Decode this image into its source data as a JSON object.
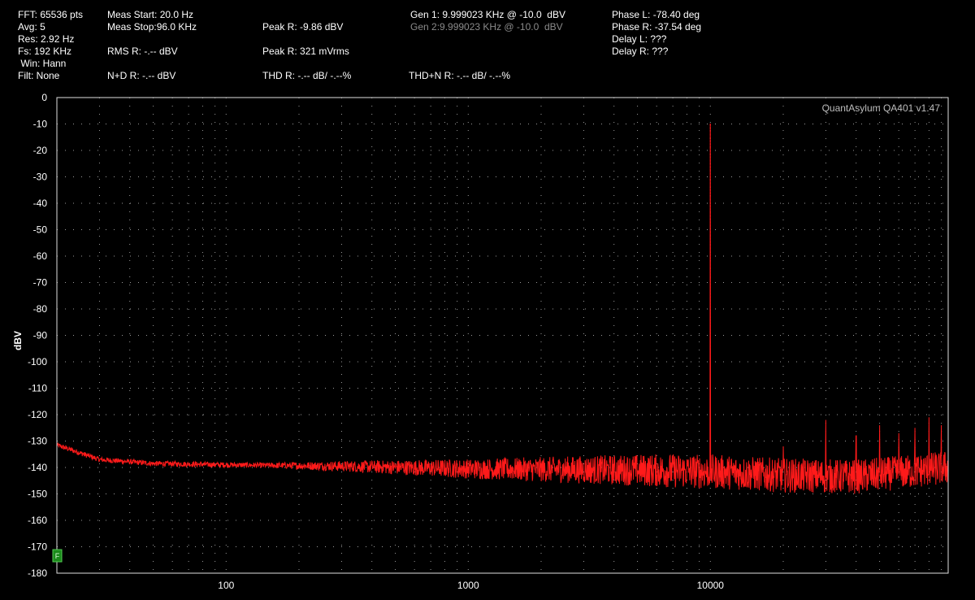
{
  "header": {
    "col1": [
      "FFT: 65536 pts",
      "Avg: 5",
      "Res: 2.92 Hz",
      "Fs: 192 KHz",
      " Win: Hann",
      "Filt: None"
    ],
    "meas_start": "Meas Start: 20.0 Hz",
    "meas_stop": "Meas Stop:96.0 KHz",
    "rms_r": "RMS R: -.-- dBV",
    "nd_r": "N+D R: -.-- dBV",
    "peak_r_db": "Peak R: -9.86 dBV",
    "peak_r_rms": "Peak R: 321 mVrms",
    "thd_r": "THD R: -.-- dB/ -.--%",
    "gen1": "Gen 1: 9.999023 KHz @ -10.0  dBV",
    "gen2": "Gen 2:9.999023 KHz @ -10.0  dBV",
    "thdn_r": "THD+N R: -.-- dB/ -.--%",
    "phase_l": "Phase L: -78.40 deg",
    "phase_r": "Phase R: -37.54 deg",
    "delay_l": "Delay L: ???",
    "delay_r": "Delay R: ???"
  },
  "watermark": "QuantAsylum QA401 v1.47",
  "marker_label": "F",
  "chart_data": {
    "type": "line",
    "title": "",
    "xlabel": "",
    "ylabel": "dBV",
    "xscale": "log",
    "xlim": [
      20,
      96000
    ],
    "ylim": [
      -180,
      0
    ],
    "xticks": [
      100,
      1000,
      10000
    ],
    "xtick_labels": [
      "100",
      "1000",
      "10000"
    ],
    "yticks": [
      0,
      -10,
      -20,
      -30,
      -40,
      -50,
      -60,
      -70,
      -80,
      -90,
      -100,
      -110,
      -120,
      -130,
      -140,
      -150,
      -160,
      -170,
      -180
    ],
    "grid": true,
    "series_color": "#ff1a1a",
    "series": [
      {
        "name": "",
        "noise_floor": [
          [
            20,
            -131.5
          ],
          [
            30,
            -137
          ],
          [
            50,
            -138.5
          ],
          [
            100,
            -139
          ],
          [
            300,
            -139.5
          ],
          [
            1000,
            -140.5
          ],
          [
            5000,
            -141
          ],
          [
            10000,
            -141.5
          ],
          [
            20000,
            -143
          ],
          [
            40000,
            -143.5
          ],
          [
            60000,
            -142
          ],
          [
            96000,
            -140
          ]
        ],
        "peaks": [
          [
            9999,
            -9.86
          ],
          [
            20000,
            -132
          ],
          [
            30000,
            -122
          ],
          [
            40000,
            -128
          ],
          [
            50000,
            -124
          ],
          [
            60000,
            -127
          ],
          [
            70000,
            -125
          ],
          [
            80000,
            -121
          ],
          [
            90000,
            -124
          ]
        ]
      }
    ]
  }
}
